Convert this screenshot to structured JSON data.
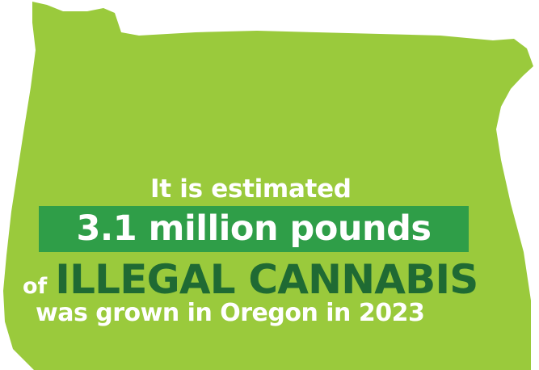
{
  "graphic": {
    "line_1": "It is estimated",
    "line_2": "3.1 million pounds",
    "line_3_prefix": "of",
    "line_3_emphasis": "ILLEGAL CANNABIS",
    "line_4": "was grown in Oregon in 2023"
  },
  "colors": {
    "state_fill": "#9aca3c",
    "highlight_box": "#2f9e48",
    "emphasis_text": "#1f6a33",
    "text": "#ffffff",
    "background": "#ffffff"
  },
  "shape": "oregon-state-outline"
}
